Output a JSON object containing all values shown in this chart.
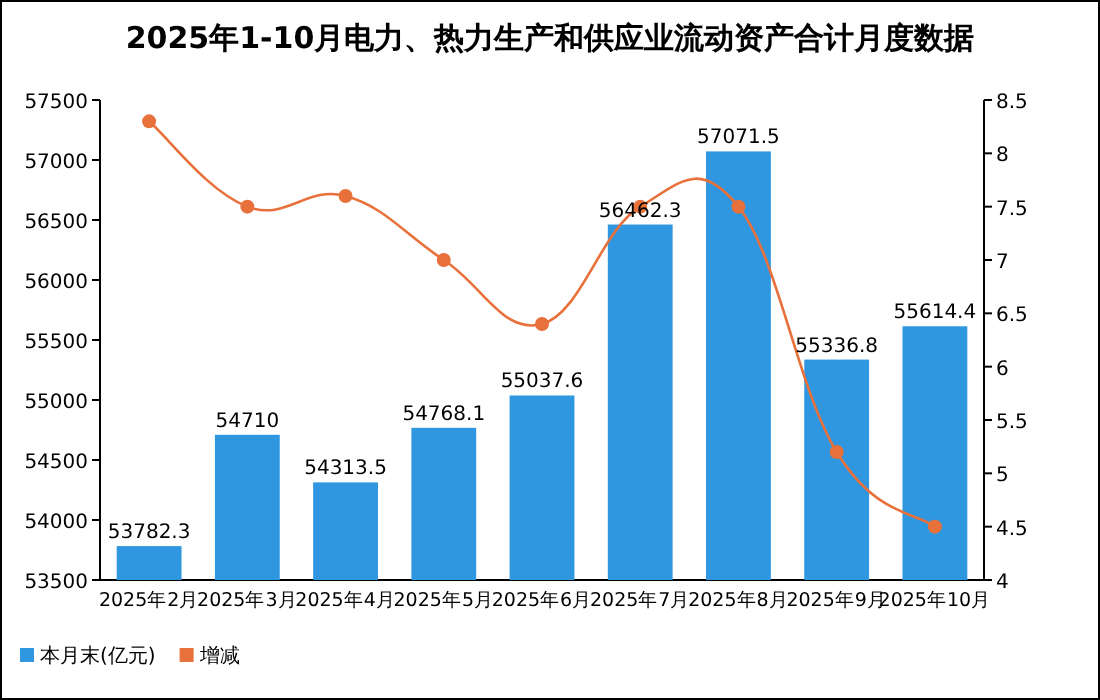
{
  "chart_data": {
    "type": "bar",
    "title": "2025年1-10月电力、热力生产和供应业流动资产合计月度数据",
    "categories": [
      "2025年2月",
      "2025年3月",
      "2025年4月",
      "2025年5月",
      "2025年6月",
      "2025年7月",
      "2025年8月",
      "2025年9月",
      "2025年10月"
    ],
    "series": [
      {
        "name": "本月末(亿元)",
        "color": "#2f96e0",
        "values": [
          53782.3,
          54710,
          54313.5,
          54768.1,
          55037.6,
          56462.3,
          57071.5,
          55336.8,
          55614.4
        ],
        "value_labels": [
          "53782.3",
          "54710",
          "54313.5",
          "54768.1",
          "55037.6",
          "56462.3",
          "57071.5",
          "55336.8",
          "55614.4"
        ]
      },
      {
        "name": "增减",
        "type": "line",
        "axis": "y2",
        "color": "#e8703a",
        "marker": "circle",
        "values": [
          8.3,
          7.5,
          7.6,
          7.0,
          6.4,
          7.5,
          7.5,
          5.2,
          4.5
        ]
      }
    ],
    "ylim": [
      53500,
      57500
    ],
    "yticks": [
      53500,
      54000,
      54500,
      55000,
      55500,
      56000,
      56500,
      57000,
      57500
    ],
    "y2lim": [
      4,
      8.5
    ],
    "y2ticks": [
      4,
      4.5,
      5,
      5.5,
      6,
      6.5,
      7,
      7.5,
      8,
      8.5
    ],
    "legend": "bottom left",
    "grid": false
  }
}
